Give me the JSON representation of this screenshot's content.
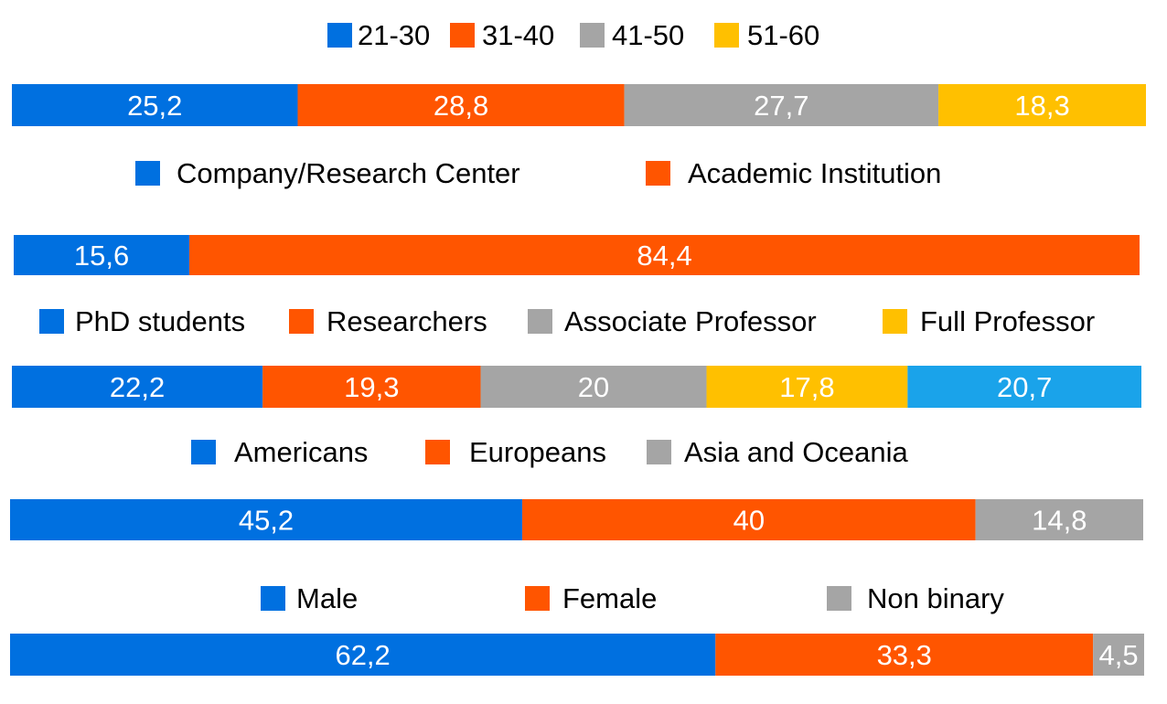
{
  "chart_data": [
    {
      "type": "bar",
      "orientation": "horizontal",
      "stacked": "100%",
      "legend_position": "top",
      "series": [
        {
          "name": "21-30",
          "values": [
            25.2
          ],
          "labels": [
            "25,2"
          ],
          "color": "#0070E0"
        },
        {
          "name": "31-40",
          "values": [
            28.8
          ],
          "labels": [
            "28,8"
          ],
          "color": "#FF5500"
        },
        {
          "name": "41-50",
          "values": [
            27.7
          ],
          "labels": [
            "27,7"
          ],
          "color": "#A5A5A5"
        },
        {
          "name": "51-60",
          "values": [
            18.3
          ],
          "labels": [
            "18,3"
          ],
          "color": "#FFC000"
        }
      ]
    },
    {
      "type": "bar",
      "orientation": "horizontal",
      "stacked": "100%",
      "legend_position": "top",
      "series": [
        {
          "name": "Company/Research Center",
          "values": [
            15.6
          ],
          "labels": [
            "15,6"
          ],
          "color": "#0070E0"
        },
        {
          "name": "Academic Institution",
          "values": [
            84.4
          ],
          "labels": [
            "84,4"
          ],
          "color": "#FF5500"
        }
      ]
    },
    {
      "type": "bar",
      "orientation": "horizontal",
      "stacked": "100%",
      "legend_position": "top",
      "series": [
        {
          "name": "PhD students",
          "values": [
            22.2
          ],
          "labels": [
            "22,2"
          ],
          "color": "#0070E0"
        },
        {
          "name": "Researchers",
          "values": [
            19.3
          ],
          "labels": [
            "19,3"
          ],
          "color": "#FF5500"
        },
        {
          "name": "Associate Professor",
          "values": [
            20
          ],
          "labels": [
            "20"
          ],
          "color": "#A5A5A5"
        },
        {
          "name": "Full Professor",
          "values": [
            17.8
          ],
          "labels": [
            "17,8"
          ],
          "color": "#FFC000"
        },
        {
          "values": [
            20.7
          ],
          "labels": [
            "20,7"
          ],
          "color": "#1AA3EA"
        }
      ]
    },
    {
      "type": "bar",
      "orientation": "horizontal",
      "stacked": "100%",
      "legend_position": "top",
      "series": [
        {
          "name": "Americans",
          "values": [
            45.2
          ],
          "labels": [
            "45,2"
          ],
          "color": "#0070E0"
        },
        {
          "name": "Europeans",
          "values": [
            40
          ],
          "labels": [
            "40"
          ],
          "color": "#FF5500"
        },
        {
          "name": "Asia and Oceania",
          "values": [
            14.8
          ],
          "labels": [
            "14,8"
          ],
          "color": "#A5A5A5"
        }
      ]
    },
    {
      "type": "bar",
      "orientation": "horizontal",
      "stacked": "100%",
      "legend_position": "top",
      "series": [
        {
          "name": "Male",
          "values": [
            62.2
          ],
          "labels": [
            "62,2"
          ],
          "color": "#0070E0"
        },
        {
          "name": "Female",
          "values": [
            33.3
          ],
          "labels": [
            "33,3"
          ],
          "color": "#FF5500"
        },
        {
          "name": "Non binary",
          "values": [
            4.5
          ],
          "labels": [
            "4,5"
          ],
          "color": "#A5A5A5"
        }
      ]
    }
  ]
}
